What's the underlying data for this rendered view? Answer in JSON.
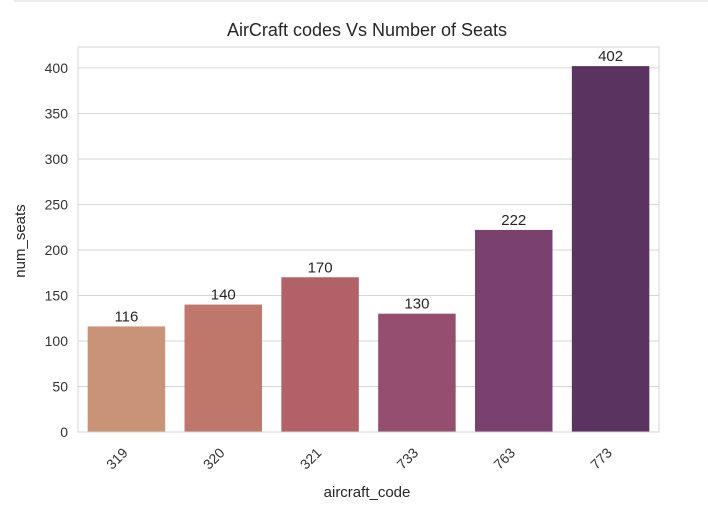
{
  "chart_data": {
    "type": "bar",
    "title": "AirCraft codes Vs Number of Seats",
    "xlabel": "aircraft_code",
    "ylabel": "num_seats",
    "categories": [
      "319",
      "320",
      "321",
      "733",
      "763",
      "773"
    ],
    "values": [
      116,
      140,
      170,
      130,
      222,
      402
    ],
    "data_labels": [
      "116",
      "140",
      "170",
      "130",
      "222",
      "402"
    ],
    "yticks": [
      "0",
      "50",
      "100",
      "150",
      "200",
      "250",
      "300",
      "350",
      "400"
    ],
    "ylim": [
      0,
      423
    ],
    "grid": "horizontal",
    "colors": [
      "#c99378",
      "#bf776b",
      "#b16167",
      "#954e6d",
      "#7a406e",
      "#5b3361"
    ],
    "frame_color": "#d4d4d4",
    "grid_color": "#d6d6d6"
  }
}
